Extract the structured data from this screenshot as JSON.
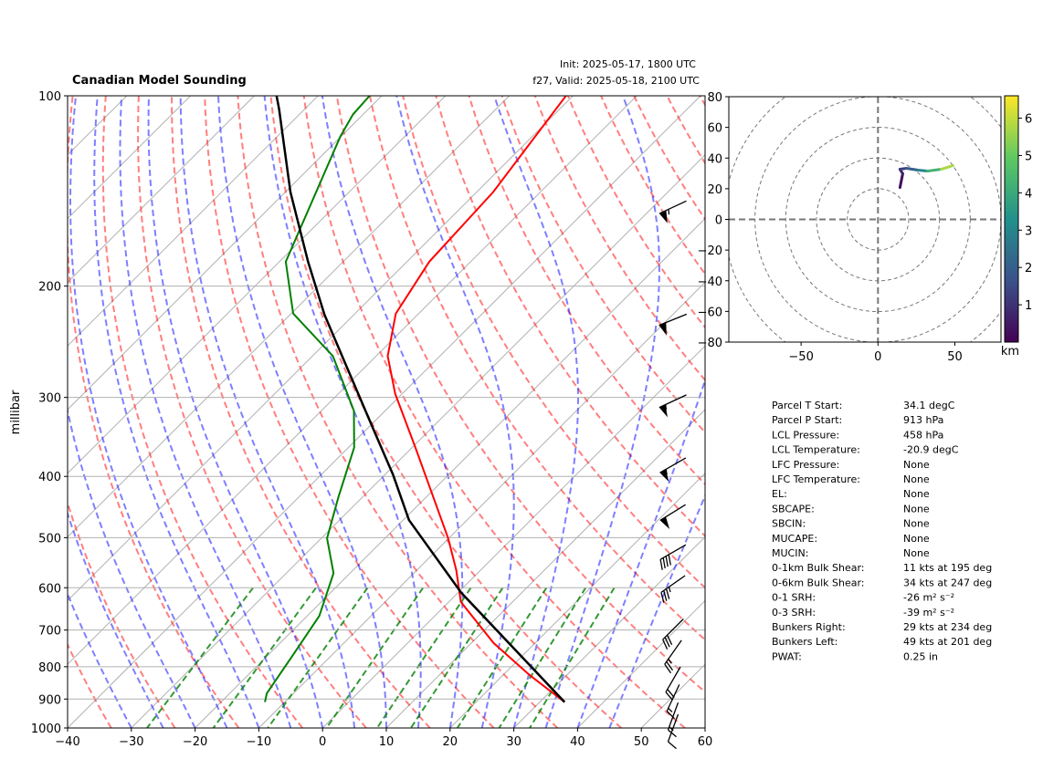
{
  "chart_data": [
    {
      "type": "skewt",
      "title": "Canadian Model Sounding",
      "init": "Init: 2025-05-17, 1800 UTC",
      "valid": "f27, Valid: 2025-05-18, 2100 UTC",
      "ylabel": "millibar",
      "xlim": [
        -40,
        60
      ],
      "xticks": [
        {
          "value": -40,
          "label": "−40"
        },
        {
          "value": -30,
          "label": "−30"
        },
        {
          "value": -20,
          "label": "−20"
        },
        {
          "value": -10,
          "label": "−10"
        },
        0,
        10,
        20,
        30,
        40,
        50,
        60
      ],
      "ylim": [
        1000,
        100
      ],
      "yticks": [
        100,
        200,
        300,
        400,
        500,
        600,
        700,
        800,
        900,
        1000
      ],
      "log_scale": true,
      "grid": true,
      "series": [
        {
          "color": "#ff0000",
          "pressure": [
            910,
            825,
            734,
            632,
            563,
            501,
            360,
            296,
            258,
            221,
            183,
            142,
            100
          ],
          "values": [
            33.9,
            24.2,
            13.5,
            1.9,
            -3.8,
            -10.1,
            -29.5,
            -41.1,
            -48.2,
            -53.6,
            -56.5,
            -57.4,
            -61.1
          ]
        },
        {
          "color": "#008000",
          "pressure": [
            910,
            881,
            772,
            665,
            569,
            501,
            431,
            360,
            315,
            258,
            221,
            183,
            116,
            107,
            100
          ],
          "values": [
            -13.1,
            -14.2,
            -16.0,
            -18.1,
            -22.6,
            -29.1,
            -33.8,
            -39.1,
            -44.9,
            -56.8,
            -69.7,
            -79.0,
            -90.1,
            -91.6,
            -91.9
          ]
        },
        {
          "color": "#000000",
          "pressure": [
            910,
            611,
            469,
            397,
            336,
            222,
            183,
            142,
            105,
            100
          ],
          "values": [
            33.9,
            0.5,
            -19.1,
            -28.8,
            -39.1,
            -64.6,
            -75.5,
            -89.2,
            -104.0,
            -106.5
          ]
        }
      ],
      "winds": {
        "pressure": [
          150,
          226,
          304,
          384,
          456,
          527,
          592,
          698,
          759,
          838,
          896,
          958,
          1000
        ],
        "speed": [
          65,
          60,
          55,
          55,
          50,
          40,
          35,
          30,
          25,
          20,
          15,
          15,
          10
        ],
        "direction": [
          245,
          248,
          245,
          240,
          238,
          240,
          235,
          225,
          215,
          210,
          205,
          200,
          200
        ]
      }
    },
    {
      "type": "hodograph",
      "u": [
        14.3,
        16.1,
        14.3,
        18.5,
        26.2,
        32.1,
        41.1,
        48.8
      ],
      "v": [
        20.8,
        29.8,
        32.7,
        33.3,
        32.1,
        31.5,
        32.7,
        35.1
      ],
      "height": [
        0,
        0.5,
        1,
        1.5,
        2.5,
        3.5,
        5,
        6.5
      ],
      "xlim": [
        -97,
        80
      ],
      "ylim": [
        -80,
        80
      ],
      "xticks": [
        {
          "value": -50,
          "label": "−50"
        },
        0,
        50
      ],
      "yticks": [
        80,
        60,
        40,
        20,
        0,
        {
          "value": -20,
          "label": "−20"
        },
        {
          "value": -40,
          "label": "−40"
        },
        {
          "value": -60,
          "label": "−60"
        },
        {
          "value": -80,
          "label": "−80"
        }
      ],
      "colorbar_label": "km",
      "colorbar_lim": [
        0,
        6.6
      ],
      "colorbar_ticks": [
        1,
        2,
        3,
        4,
        5,
        6
      ]
    }
  ],
  "parameters": [
    [
      "Parcel T Start:",
      "34.1 degC"
    ],
    [
      "Parcel P Start:",
      "913 hPa"
    ],
    [
      "LCL Pressure:",
      "458 hPa"
    ],
    [
      "LCL Temperature:",
      "-20.9 degC"
    ],
    [
      "LFC Pressure:",
      "None"
    ],
    [
      "LFC Temperature:",
      "None"
    ],
    [
      "EL:",
      "None"
    ],
    [
      "SBCAPE:",
      "None"
    ],
    [
      "SBCIN:",
      "None"
    ],
    [
      "MUCAPE:",
      "None"
    ],
    [
      "MUCIN:",
      "None"
    ],
    [
      "0-1km Bulk Shear:",
      "11 kts at 195 deg"
    ],
    [
      "0-6km Bulk Shear:",
      "34 kts at 247 deg"
    ],
    [
      "0-1 SRH:",
      "-26 m² s⁻²"
    ],
    [
      "0-3 SRH:",
      "-39 m² s⁻²"
    ],
    [
      "Bunkers Right:",
      "29 kts at 234 deg"
    ],
    [
      "Bunkers Left:",
      "49 kts at 201 deg"
    ],
    [
      "PWAT:",
      "0.25 in"
    ]
  ]
}
